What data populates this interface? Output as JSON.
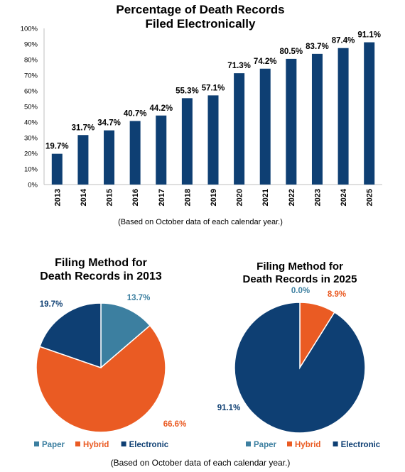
{
  "chart_data": [
    {
      "type": "bar",
      "title": "Percentage of Death Records\nFiled Electronically",
      "note": "(Based on October data of each calendar year.)",
      "categories": [
        "2013",
        "2014",
        "2015",
        "2016",
        "2017",
        "2018",
        "2019",
        "2020",
        "2021",
        "2022",
        "2023",
        "2024",
        "2025"
      ],
      "values": [
        19.7,
        31.7,
        34.7,
        40.7,
        44.2,
        55.3,
        57.1,
        71.3,
        74.2,
        80.5,
        83.7,
        87.4,
        91.1
      ],
      "value_labels": [
        "19.7%",
        "31.7%",
        "34.7%",
        "40.7%",
        "44.2%",
        "55.3%",
        "57.1%",
        "71.3%",
        "74.2%",
        "80.5%",
        "83.7%",
        "87.4%",
        "91.1%"
      ],
      "ylim": [
        0,
        100
      ],
      "yticks": [
        "0%",
        "10%",
        "20%",
        "30%",
        "40%",
        "50%",
        "60%",
        "70%",
        "80%",
        "90%",
        "100%"
      ],
      "color": "#0e3f73",
      "grid": false
    },
    {
      "type": "pie",
      "title": "Filing Method for\nDeath Records in 2013",
      "slices": [
        {
          "name": "Paper",
          "value": 13.7,
          "label": "13.7%",
          "color": "#3c7fa0"
        },
        {
          "name": "Hybrid",
          "value": 66.6,
          "label": "66.6%",
          "color": "#ea5b23"
        },
        {
          "name": "Electronic",
          "value": 19.7,
          "label": "19.7%",
          "color": "#0e3f73"
        }
      ],
      "legend_position": "bottom"
    },
    {
      "type": "pie",
      "title": "Filing Method for\nDeath Records in 2025",
      "slices": [
        {
          "name": "Paper",
          "value": 0.0,
          "label": "0.0%",
          "color": "#3c7fa0"
        },
        {
          "name": "Hybrid",
          "value": 8.9,
          "label": "8.9%",
          "color": "#ea5b23"
        },
        {
          "name": "Electronic",
          "value": 91.1,
          "label": "91.1%",
          "color": "#0e3f73"
        }
      ],
      "legend_position": "bottom"
    }
  ],
  "bottom_note": "(Based on October data of each calendar year.)"
}
